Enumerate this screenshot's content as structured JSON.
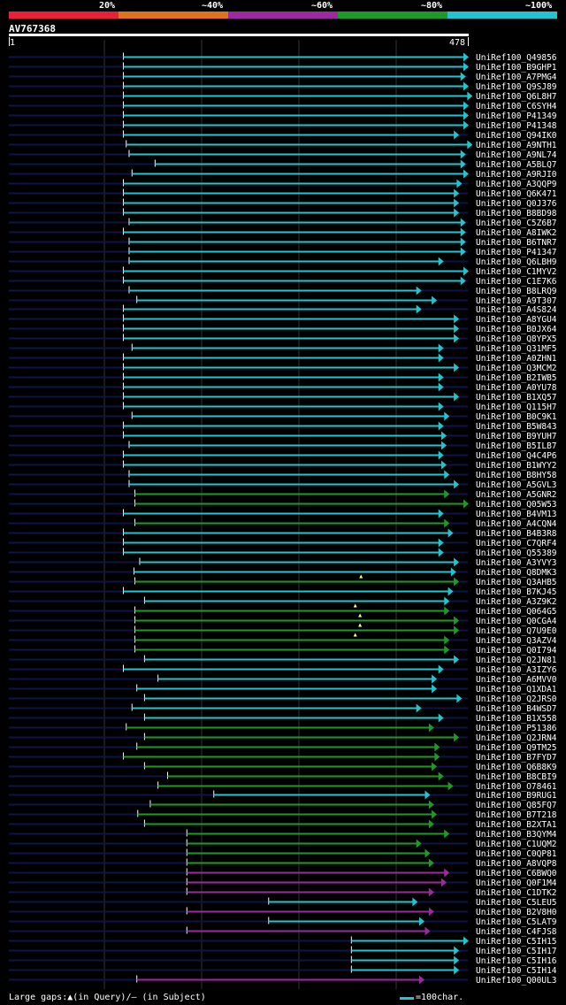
{
  "legend": {
    "labels": [
      "20%",
      "~40%",
      "~60%",
      "~80%",
      "~100%"
    ],
    "colors": [
      "#e8203a",
      "#e0721e",
      "#9b2aa0",
      "#1e9a2a",
      "#22c4d0"
    ]
  },
  "query": {
    "id": "AV767368",
    "start": "1",
    "end": "478",
    "length": 478
  },
  "footer": {
    "left": "Large gaps:▲(in Query)/– (in Subject)",
    "right": "=100char."
  },
  "hits": [
    {
      "name": "UniRef100_Q49856",
      "start": 120,
      "end": 478,
      "color": "#22c4d0"
    },
    {
      "name": "UniRef100_B9GHP1",
      "start": 120,
      "end": 478,
      "color": "#22c4d0"
    },
    {
      "name": "UniRef100_A7PMG4",
      "start": 120,
      "end": 475,
      "color": "#22c4d0"
    },
    {
      "name": "UniRef100_Q9SJ89",
      "start": 120,
      "end": 478,
      "color": "#22c4d0"
    },
    {
      "name": "UniRef100_Q6L8H7",
      "start": 120,
      "end": 482,
      "color": "#22c4d0"
    },
    {
      "name": "UniRef100_C6SYH4",
      "start": 120,
      "end": 478,
      "color": "#22c4d0"
    },
    {
      "name": "UniRef100_P41349",
      "start": 120,
      "end": 478,
      "color": "#22c4d0"
    },
    {
      "name": "UniRef100_P41348",
      "start": 120,
      "end": 478,
      "color": "#22c4d0"
    },
    {
      "name": "UniRef100_Q94IK0",
      "start": 120,
      "end": 468,
      "color": "#22c4d0"
    },
    {
      "name": "UniRef100_A9NTH1",
      "start": 123,
      "end": 482,
      "color": "#22c4d0"
    },
    {
      "name": "UniRef100_A9NL74",
      "start": 126,
      "end": 475,
      "color": "#22c4d0"
    },
    {
      "name": "UniRef100_A5BLQ7",
      "start": 153,
      "end": 475,
      "color": "#22c4d0"
    },
    {
      "name": "UniRef100_A9RJI0",
      "start": 129,
      "end": 478,
      "color": "#22c4d0"
    },
    {
      "name": "UniRef100_A3QQP9",
      "start": 120,
      "end": 471,
      "color": "#22c4d0"
    },
    {
      "name": "UniRef100_Q6K471",
      "start": 120,
      "end": 468,
      "color": "#22c4d0"
    },
    {
      "name": "UniRef100_Q0J376",
      "start": 120,
      "end": 468,
      "color": "#22c4d0"
    },
    {
      "name": "UniRef100_B8BD98",
      "start": 120,
      "end": 468,
      "color": "#22c4d0"
    },
    {
      "name": "UniRef100_C5Z6B7",
      "start": 126,
      "end": 475,
      "color": "#22c4d0"
    },
    {
      "name": "UniRef100_A8IWK2",
      "start": 120,
      "end": 475,
      "color": "#22c4d0"
    },
    {
      "name": "UniRef100_B6TNR7",
      "start": 126,
      "end": 475,
      "color": "#22c4d0"
    },
    {
      "name": "UniRef100_P41347",
      "start": 126,
      "end": 475,
      "color": "#22c4d0"
    },
    {
      "name": "UniRef100_Q6LBH9",
      "start": 126,
      "end": 452,
      "color": "#22c4d0"
    },
    {
      "name": "UniRef100_C1MYV2",
      "start": 120,
      "end": 478,
      "color": "#22c4d0"
    },
    {
      "name": "UniRef100_C1E7K6",
      "start": 120,
      "end": 475,
      "color": "#22c4d0"
    },
    {
      "name": "UniRef100_B8LRQ9",
      "start": 126,
      "end": 429,
      "color": "#22c4d0"
    },
    {
      "name": "UniRef100_A9T307",
      "start": 134,
      "end": 445,
      "color": "#22c4d0"
    },
    {
      "name": "UniRef100_A4S824",
      "start": 120,
      "end": 429,
      "color": "#22c4d0"
    },
    {
      "name": "UniRef100_A8YGU4",
      "start": 120,
      "end": 468,
      "color": "#22c4d0"
    },
    {
      "name": "UniRef100_B0JX64",
      "start": 120,
      "end": 468,
      "color": "#22c4d0"
    },
    {
      "name": "UniRef100_Q8YPX5",
      "start": 120,
      "end": 468,
      "color": "#22c4d0"
    },
    {
      "name": "UniRef100_Q31MF5",
      "start": 129,
      "end": 452,
      "color": "#22c4d0"
    },
    {
      "name": "UniRef100_A0ZHN1",
      "start": 120,
      "end": 452,
      "color": "#22c4d0"
    },
    {
      "name": "UniRef100_Q3MCM2",
      "start": 120,
      "end": 468,
      "color": "#22c4d0"
    },
    {
      "name": "UniRef100_B2IWB5",
      "start": 120,
      "end": 452,
      "color": "#22c4d0"
    },
    {
      "name": "UniRef100_A0YU78",
      "start": 120,
      "end": 452,
      "color": "#22c4d0"
    },
    {
      "name": "UniRef100_B1XQ57",
      "start": 120,
      "end": 468,
      "color": "#22c4d0"
    },
    {
      "name": "UniRef100_Q115H7",
      "start": 120,
      "end": 452,
      "color": "#22c4d0"
    },
    {
      "name": "UniRef100_B0C9K1",
      "start": 129,
      "end": 458,
      "color": "#22c4d0"
    },
    {
      "name": "UniRef100_B5W843",
      "start": 120,
      "end": 452,
      "color": "#22c4d0"
    },
    {
      "name": "UniRef100_B9YUH7",
      "start": 120,
      "end": 455,
      "color": "#22c4d0"
    },
    {
      "name": "UniRef100_B5ILB7",
      "start": 126,
      "end": 455,
      "color": "#22c4d0"
    },
    {
      "name": "UniRef100_Q4C4P6",
      "start": 120,
      "end": 452,
      "color": "#22c4d0"
    },
    {
      "name": "UniRef100_B1WYY2",
      "start": 120,
      "end": 455,
      "color": "#22c4d0"
    },
    {
      "name": "UniRef100_B8HY58",
      "start": 126,
      "end": 458,
      "color": "#22c4d0"
    },
    {
      "name": "UniRef100_A5GVL3",
      "start": 126,
      "end": 468,
      "color": "#22c4d0"
    },
    {
      "name": "UniRef100_A5GNR2",
      "start": 132,
      "end": 458,
      "color": "#1e9a2a"
    },
    {
      "name": "UniRef100_Q05W53",
      "start": 132,
      "end": 478,
      "color": "#1e9a2a"
    },
    {
      "name": "UniRef100_B4VM13",
      "start": 120,
      "end": 452,
      "color": "#22c4d0"
    },
    {
      "name": "UniRef100_A4CQN4",
      "start": 132,
      "end": 458,
      "color": "#1e9a2a"
    },
    {
      "name": "UniRef100_B4B3R8",
      "start": 120,
      "end": 462,
      "color": "#22c4d0"
    },
    {
      "name": "UniRef100_C7QRF4",
      "start": 120,
      "end": 452,
      "color": "#22c4d0"
    },
    {
      "name": "UniRef100_Q55389",
      "start": 120,
      "end": 452,
      "color": "#22c4d0"
    },
    {
      "name": "UniRef100_A3YVY3",
      "start": 137,
      "end": 468,
      "color": "#22c4d0"
    },
    {
      "name": "UniRef100_Q8DMK3",
      "start": 131,
      "end": 465,
      "color": "#22c4d0"
    },
    {
      "name": "UniRef100_Q3AHB5",
      "start": 132,
      "end": 468,
      "color": "#1e9a2a",
      "gap": 367
    },
    {
      "name": "UniRef100_B7KJ45",
      "start": 120,
      "end": 462,
      "color": "#22c4d0"
    },
    {
      "name": "UniRef100_A3Z9K2",
      "start": 142,
      "end": 458,
      "color": "#22c4d0"
    },
    {
      "name": "UniRef100_Q064G5",
      "start": 132,
      "end": 458,
      "color": "#1e9a2a",
      "gap": 361
    },
    {
      "name": "UniRef100_Q0CGA4",
      "start": 132,
      "end": 468,
      "color": "#1e9a2a",
      "gap": 366
    },
    {
      "name": "UniRef100_Q7U9E0",
      "start": 132,
      "end": 468,
      "color": "#1e9a2a",
      "gap": 366
    },
    {
      "name": "UniRef100_Q3AZV4",
      "start": 132,
      "end": 458,
      "color": "#1e9a2a",
      "gap": 361
    },
    {
      "name": "UniRef100_Q0I794",
      "start": 132,
      "end": 458,
      "color": "#1e9a2a"
    },
    {
      "name": "UniRef100_Q2JN81",
      "start": 142,
      "end": 468,
      "color": "#22c4d0"
    },
    {
      "name": "UniRef100_A3IZY6",
      "start": 120,
      "end": 452,
      "color": "#22c4d0"
    },
    {
      "name": "UniRef100_A6MVV0",
      "start": 156,
      "end": 445,
      "color": "#22c4d0"
    },
    {
      "name": "UniRef100_Q1XDA1",
      "start": 134,
      "end": 445,
      "color": "#22c4d0"
    },
    {
      "name": "UniRef100_Q2JRS0",
      "start": 142,
      "end": 471,
      "color": "#22c4d0"
    },
    {
      "name": "UniRef100_B4WSD7",
      "start": 129,
      "end": 429,
      "color": "#22c4d0"
    },
    {
      "name": "UniRef100_B1X558",
      "start": 142,
      "end": 452,
      "color": "#22c4d0"
    },
    {
      "name": "UniRef100_P51386",
      "start": 123,
      "end": 442,
      "color": "#1e9a2a"
    },
    {
      "name": "UniRef100_Q2JRN4",
      "start": 142,
      "end": 468,
      "color": "#1e9a2a"
    },
    {
      "name": "UniRef100_Q9TM25",
      "start": 134,
      "end": 448,
      "color": "#1e9a2a"
    },
    {
      "name": "UniRef100_B7FYD7",
      "start": 120,
      "end": 448,
      "color": "#1e9a2a"
    },
    {
      "name": "UniRef100_Q6B8K9",
      "start": 142,
      "end": 445,
      "color": "#1e9a2a"
    },
    {
      "name": "UniRef100_B8CBI9",
      "start": 166,
      "end": 452,
      "color": "#1e9a2a"
    },
    {
      "name": "UniRef100_O78461",
      "start": 156,
      "end": 462,
      "color": "#1e9a2a"
    },
    {
      "name": "UniRef100_B9RUG1",
      "start": 214,
      "end": 438,
      "color": "#22c4d0"
    },
    {
      "name": "UniRef100_Q85FQ7",
      "start": 148,
      "end": 442,
      "color": "#1e9a2a"
    },
    {
      "name": "UniRef100_B7T218",
      "start": 135,
      "end": 445,
      "color": "#1e9a2a"
    },
    {
      "name": "UniRef100_B2XTA1",
      "start": 142,
      "end": 442,
      "color": "#1e9a2a"
    },
    {
      "name": "UniRef100_B3QYM4",
      "start": 186,
      "end": 458,
      "color": "#1e9a2a"
    },
    {
      "name": "UniRef100_C1UQM2",
      "start": 186,
      "end": 429,
      "color": "#1e9a2a"
    },
    {
      "name": "UniRef100_C0QP81",
      "start": 186,
      "end": 438,
      "color": "#1e9a2a"
    },
    {
      "name": "UniRef100_A8VQP8",
      "start": 186,
      "end": 442,
      "color": "#1e9a2a"
    },
    {
      "name": "UniRef100_C6BWQ0",
      "start": 186,
      "end": 458,
      "color": "#9b2aa0"
    },
    {
      "name": "UniRef100_Q0F1M4",
      "start": 186,
      "end": 455,
      "color": "#9b2aa0"
    },
    {
      "name": "UniRef100_C1DTK2",
      "start": 186,
      "end": 442,
      "color": "#9b2aa0"
    },
    {
      "name": "UniRef100_C5LEU5",
      "start": 271,
      "end": 425,
      "color": "#22c4d0"
    },
    {
      "name": "UniRef100_B2V8H0",
      "start": 186,
      "end": 442,
      "color": "#9b2aa0"
    },
    {
      "name": "UniRef100_C5LAT9",
      "start": 271,
      "end": 432,
      "color": "#22c4d0"
    },
    {
      "name": "UniRef100_C4FJS8",
      "start": 186,
      "end": 438,
      "color": "#9b2aa0"
    },
    {
      "name": "UniRef100_C5IH15",
      "start": 357,
      "end": 478,
      "color": "#22c4d0"
    },
    {
      "name": "UniRef100_C5IH17",
      "start": 357,
      "end": 468,
      "color": "#22c4d0"
    },
    {
      "name": "UniRef100_C5IH16",
      "start": 357,
      "end": 468,
      "color": "#22c4d0"
    },
    {
      "name": "UniRef100_C5IH14",
      "start": 357,
      "end": 468,
      "color": "#22c4d0"
    },
    {
      "name": "UniRef100_Q00UL3",
      "start": 134,
      "end": 432,
      "color": "#9b2aa0"
    }
  ]
}
